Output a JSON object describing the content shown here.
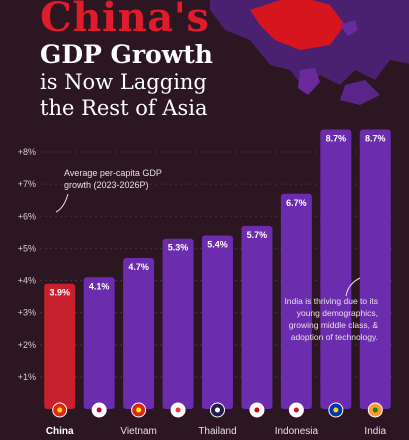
{
  "header": {
    "title_line1": "China's",
    "title_line2": "GDP Growth",
    "title_line3": "is Now Lagging",
    "title_line4": "the Rest of Asia"
  },
  "colors": {
    "background": "#2b1622",
    "china_bar": "#c8202e",
    "other_bar": "#6c2cae",
    "title_red": "#e01b2b",
    "map_purple": "#6a2a9e",
    "map_red": "#d6151f"
  },
  "chart_data": {
    "type": "bar",
    "categories": [
      "China",
      "Japan",
      "Vietnam",
      "Singapore",
      "Thailand",
      "Malaysia",
      "Indonesia",
      "Philippines",
      "India"
    ],
    "category_labels_shown": [
      "China",
      "",
      "Vietnam",
      "",
      "Thailand",
      "",
      "Indonesia",
      "",
      "India"
    ],
    "values": [
      3.9,
      4.1,
      4.7,
      5.3,
      5.4,
      5.7,
      6.7,
      8.7,
      8.7
    ],
    "value_labels": [
      "3.9%",
      "4.1%",
      "4.7%",
      "5.3%",
      "5.4%",
      "5.7%",
      "6.7%",
      "8.7%",
      "8.7%"
    ],
    "ylim": [
      0,
      8
    ],
    "yticks": [
      1,
      2,
      3,
      4,
      5,
      6,
      7,
      8
    ],
    "ytick_labels": [
      "+1%",
      "+2%",
      "+3%",
      "+4%",
      "+5%",
      "+6%",
      "+7%",
      "+8%"
    ],
    "grid": true,
    "flags": [
      "china-flag-icon",
      "japan-flag-icon",
      "vietnam-flag-icon",
      "singapore-flag-icon",
      "thailand-flag-icon",
      "malaysia-flag-icon",
      "indonesia-flag-icon",
      "philippines-flag-icon",
      "india-flag-icon"
    ],
    "annotations": [
      {
        "text_lines": [
          "Average per-capita GDP",
          "growth (2023-2026P)"
        ]
      },
      {
        "text_lines": [
          "India is thriving due to its",
          "young demographics,",
          "growing middle class, &",
          "adoption of technology."
        ]
      }
    ]
  }
}
